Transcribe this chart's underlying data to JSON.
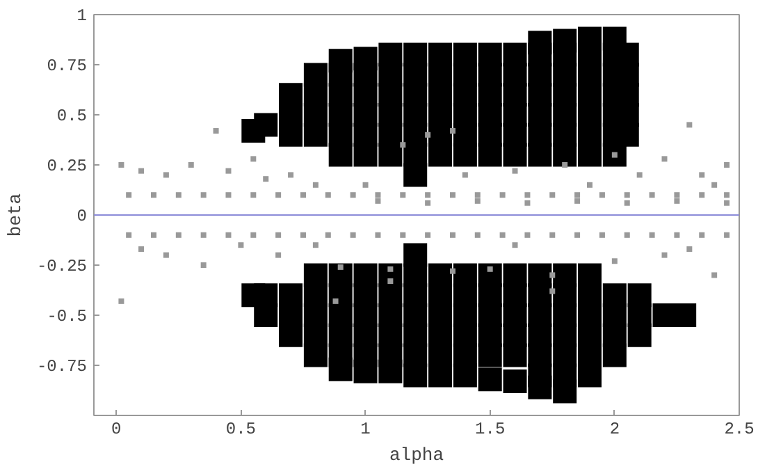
{
  "chart_data": {
    "type": "scatter",
    "xlabel": "alpha",
    "ylabel": "beta",
    "xlim": [
      -0.09,
      2.5
    ],
    "ylim": [
      -1,
      1
    ],
    "xticks": [
      0,
      0.5,
      1,
      1.5,
      2,
      2.5
    ],
    "yticks": [
      -0.75,
      -0.5,
      -0.25,
      0,
      0.25,
      0.5,
      0.75,
      1
    ],
    "grid": false,
    "marker": "square",
    "ref_lines": [
      {
        "axis": "y",
        "value": 0,
        "color": "#8c8cd8"
      }
    ],
    "series": [
      {
        "color": "#000000",
        "x": [
          0.55,
          0.6,
          0.7,
          0.7,
          0.7,
          0.8,
          0.8,
          0.8,
          0.8,
          0.9,
          0.9,
          0.9,
          0.9,
          0.9,
          0.9,
          1.0,
          1.0,
          1.0,
          1.0,
          1.0,
          1.0,
          1.1,
          1.1,
          1.1,
          1.1,
          1.1,
          1.1,
          1.2,
          1.2,
          1.2,
          1.2,
          1.2,
          1.2,
          1.2,
          1.3,
          1.3,
          1.3,
          1.3,
          1.3,
          1.3,
          1.4,
          1.4,
          1.4,
          1.4,
          1.4,
          1.4,
          1.5,
          1.5,
          1.5,
          1.5,
          1.5,
          1.5,
          1.6,
          1.6,
          1.6,
          1.6,
          1.6,
          1.6,
          1.7,
          1.7,
          1.7,
          1.7,
          1.7,
          1.7,
          1.7,
          1.8,
          1.8,
          1.8,
          1.8,
          1.8,
          1.8,
          1.8,
          1.9,
          1.9,
          1.9,
          1.9,
          1.9,
          1.9,
          1.9,
          2.0,
          2.0,
          2.0,
          2.0,
          2.0,
          2.0,
          2.0,
          2.05,
          2.05,
          2.05,
          2.05,
          2.05,
          0.55,
          0.6,
          0.6,
          0.7,
          0.7,
          0.7,
          0.8,
          0.8,
          0.8,
          0.8,
          0.8,
          0.9,
          0.9,
          0.9,
          0.9,
          0.9,
          0.9,
          1.0,
          1.0,
          1.0,
          1.0,
          1.0,
          1.0,
          1.1,
          1.1,
          1.1,
          1.1,
          1.1,
          1.1,
          1.2,
          1.2,
          1.2,
          1.2,
          1.2,
          1.2,
          1.2,
          1.3,
          1.3,
          1.3,
          1.3,
          1.3,
          1.3,
          1.4,
          1.4,
          1.4,
          1.4,
          1.4,
          1.4,
          1.5,
          1.5,
          1.5,
          1.5,
          1.5,
          1.5,
          1.6,
          1.6,
          1.6,
          1.6,
          1.6,
          1.6,
          1.7,
          1.7,
          1.7,
          1.7,
          1.7,
          1.7,
          1.7,
          1.8,
          1.8,
          1.8,
          1.8,
          1.8,
          1.8,
          1.8,
          1.9,
          1.9,
          1.9,
          1.9,
          1.9,
          1.9,
          2.0,
          2.0,
          2.0,
          2.0,
          2.1,
          2.1,
          2.1,
          2.2,
          2.28
        ],
        "values": [
          0.42,
          0.45,
          0.4,
          0.5,
          0.6,
          0.4,
          0.5,
          0.6,
          0.7,
          0.3,
          0.4,
          0.5,
          0.6,
          0.7,
          0.77,
          0.3,
          0.4,
          0.5,
          0.6,
          0.7,
          0.78,
          0.3,
          0.4,
          0.5,
          0.6,
          0.7,
          0.8,
          0.2,
          0.3,
          0.4,
          0.5,
          0.6,
          0.7,
          0.8,
          0.3,
          0.4,
          0.5,
          0.6,
          0.7,
          0.8,
          0.3,
          0.4,
          0.5,
          0.6,
          0.7,
          0.8,
          0.3,
          0.4,
          0.5,
          0.6,
          0.7,
          0.8,
          0.3,
          0.4,
          0.5,
          0.6,
          0.7,
          0.8,
          0.3,
          0.4,
          0.5,
          0.6,
          0.7,
          0.8,
          0.86,
          0.3,
          0.4,
          0.5,
          0.6,
          0.7,
          0.8,
          0.87,
          0.3,
          0.4,
          0.5,
          0.6,
          0.7,
          0.8,
          0.88,
          0.3,
          0.4,
          0.5,
          0.6,
          0.7,
          0.8,
          0.88,
          0.4,
          0.5,
          0.6,
          0.7,
          0.8,
          -0.4,
          -0.4,
          -0.5,
          -0.4,
          -0.5,
          -0.6,
          -0.3,
          -0.4,
          -0.5,
          -0.6,
          -0.7,
          -0.3,
          -0.4,
          -0.5,
          -0.6,
          -0.7,
          -0.77,
          -0.3,
          -0.4,
          -0.5,
          -0.6,
          -0.7,
          -0.78,
          -0.3,
          -0.4,
          -0.5,
          -0.6,
          -0.7,
          -0.78,
          -0.2,
          -0.3,
          -0.4,
          -0.5,
          -0.6,
          -0.7,
          -0.8,
          -0.3,
          -0.4,
          -0.5,
          -0.6,
          -0.7,
          -0.8,
          -0.3,
          -0.4,
          -0.5,
          -0.6,
          -0.7,
          -0.8,
          -0.3,
          -0.4,
          -0.5,
          -0.6,
          -0.7,
          -0.82,
          -0.3,
          -0.4,
          -0.5,
          -0.6,
          -0.7,
          -0.83,
          -0.3,
          -0.4,
          -0.5,
          -0.6,
          -0.7,
          -0.8,
          -0.86,
          -0.3,
          -0.4,
          -0.5,
          -0.6,
          -0.7,
          -0.8,
          -0.88,
          -0.3,
          -0.4,
          -0.5,
          -0.6,
          -0.7,
          -0.8,
          -0.4,
          -0.5,
          -0.6,
          -0.7,
          -0.4,
          -0.5,
          -0.6,
          -0.5,
          -0.5
        ]
      },
      {
        "color": "#999999",
        "x": [
          0.05,
          0.15,
          0.25,
          0.35,
          0.45,
          0.55,
          0.65,
          0.75,
          0.85,
          0.95,
          1.05,
          1.15,
          1.25,
          1.35,
          1.45,
          1.55,
          1.65,
          1.75,
          1.85,
          1.95,
          2.05,
          2.15,
          2.25,
          2.35,
          2.45,
          0.02,
          0.1,
          0.2,
          0.3,
          0.45,
          0.55,
          0.6,
          0.7,
          0.8,
          1.15,
          1.25,
          1.35,
          1.4,
          1.6,
          1.8,
          2.0,
          2.1,
          2.2,
          2.3,
          2.35,
          2.45,
          0.4,
          1.0,
          1.9,
          2.4,
          1.05,
          1.25,
          1.45,
          1.65,
          1.85,
          2.05,
          2.25,
          2.45,
          0.05,
          0.15,
          0.25,
          0.35,
          0.45,
          0.55,
          0.65,
          0.75,
          0.85,
          0.95,
          1.05,
          1.15,
          1.25,
          1.35,
          1.45,
          1.55,
          1.65,
          1.75,
          1.85,
          1.95,
          2.05,
          2.15,
          2.25,
          2.35,
          2.45,
          0.1,
          0.2,
          0.35,
          0.5,
          0.65,
          0.9,
          1.1,
          1.1,
          1.35,
          1.5,
          1.75,
          1.75,
          0.88,
          2.0,
          2.2,
          2.4,
          0.02,
          1.6,
          2.3,
          0.8
        ],
        "values": [
          0.1,
          0.1,
          0.1,
          0.1,
          0.1,
          0.1,
          0.1,
          0.1,
          0.1,
          0.1,
          0.1,
          0.1,
          0.1,
          0.1,
          0.1,
          0.1,
          0.1,
          0.1,
          0.1,
          0.1,
          0.1,
          0.1,
          0.1,
          0.1,
          0.1,
          0.25,
          0.22,
          0.2,
          0.25,
          0.22,
          0.28,
          0.18,
          0.2,
          0.15,
          0.35,
          0.4,
          0.42,
          0.2,
          0.22,
          0.25,
          0.3,
          0.2,
          0.28,
          0.45,
          0.2,
          0.25,
          0.42,
          0.15,
          0.15,
          0.15,
          0.07,
          0.06,
          0.07,
          0.06,
          0.07,
          0.06,
          0.07,
          0.06,
          -0.1,
          -0.1,
          -0.1,
          -0.1,
          -0.1,
          -0.1,
          -0.1,
          -0.1,
          -0.1,
          -0.1,
          -0.1,
          -0.1,
          -0.1,
          -0.1,
          -0.1,
          -0.1,
          -0.1,
          -0.1,
          -0.1,
          -0.1,
          -0.1,
          -0.1,
          -0.1,
          -0.1,
          -0.1,
          -0.17,
          -0.2,
          -0.25,
          -0.15,
          -0.2,
          -0.26,
          -0.33,
          -0.27,
          -0.28,
          -0.27,
          -0.3,
          -0.38,
          -0.43,
          -0.23,
          -0.2,
          -0.3,
          -0.43,
          -0.15,
          -0.17,
          -0.15
        ]
      }
    ]
  }
}
